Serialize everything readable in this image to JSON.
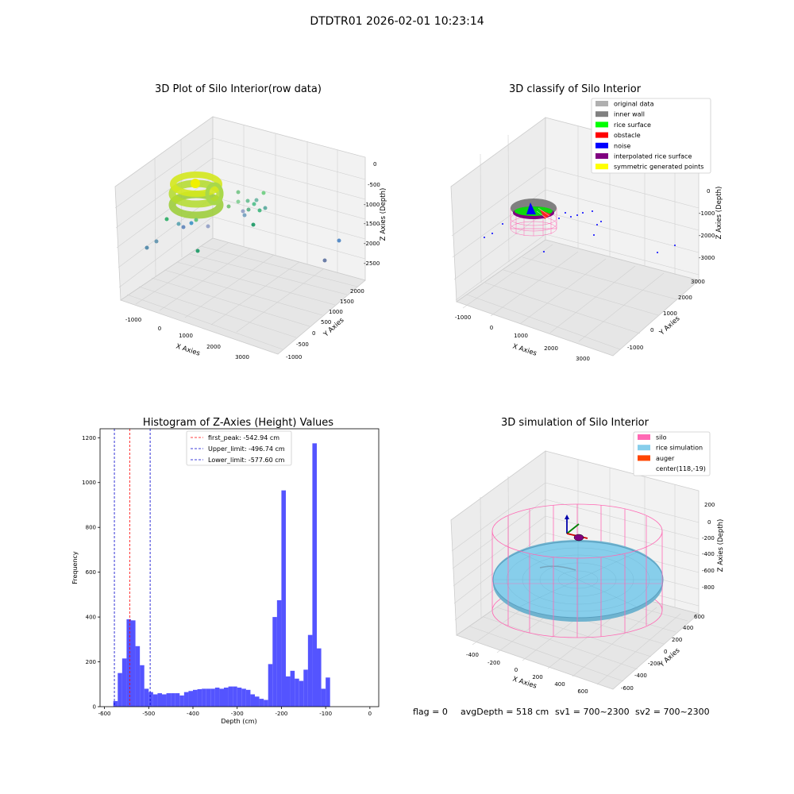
{
  "figure": {
    "suptitle": "DTDTR01 2026-02-01 10:23:14",
    "footer": {
      "flag": "flag = 0",
      "avg_depth": "avgDepth = 518 cm",
      "sv1": "sv1 = 700~2300",
      "sv2": "sv2 = 700~2300"
    }
  },
  "colors": {
    "histogram_bar": "#4b4bff",
    "first_peak_line": "#ff0000",
    "limit_lines": "#0000cc",
    "silo_wire": "#ff69b4",
    "rice_sim": "#87ceeb",
    "pane_bg": "#f2f2f2"
  },
  "chart_data": [
    {
      "type": "scatter",
      "title": "3D Plot of Silo Interior(row data)",
      "xlabel": "X Axies",
      "ylabel": "Y Axies",
      "zlabel": "Z Axies (Depth)",
      "x_ticks": [
        "-1000",
        "0",
        "1000",
        "2000",
        "3000"
      ],
      "y_ticks": [
        "-1000",
        "-500",
        "0",
        "500",
        "1000",
        "1500",
        "2000"
      ],
      "z_ticks": [
        "0",
        "-500",
        "-1000",
        "-1500",
        "-2000",
        "-2500"
      ],
      "grid": true
    },
    {
      "type": "scatter",
      "title": "3D classify of Silo Interior",
      "xlabel": "X Axies",
      "ylabel": "Y Axies",
      "zlabel": "Z Axies (Depth)",
      "x_ticks": [
        "-1000",
        "0",
        "1000",
        "2000",
        "3000"
      ],
      "y_ticks": [
        "-1000",
        "0",
        "1000",
        "2000",
        "3000"
      ],
      "z_ticks": [
        "0",
        "-1000",
        "-2000",
        "-3000"
      ],
      "legend_position": "top-right",
      "legend": [
        {
          "label": "original data",
          "color": "#b0b0b0"
        },
        {
          "label": "inner wall",
          "color": "#808080"
        },
        {
          "label": "rice surface",
          "color": "#00ff00"
        },
        {
          "label": "obstacle",
          "color": "#ff0000"
        },
        {
          "label": "noise",
          "color": "#0000ff"
        },
        {
          "label": "interpolated rice surface",
          "color": "#800080"
        },
        {
          "label": "symmetric generated points",
          "color": "#ffff00"
        }
      ],
      "grid": true
    },
    {
      "type": "bar",
      "title": "Histogram of Z-Axies (Height) Values",
      "xlabel": "Depth (cm)",
      "ylabel": "Frequency",
      "xlim": [
        -610,
        20
      ],
      "ylim": [
        0,
        1240
      ],
      "x_ticks": [
        -600,
        -500,
        -400,
        -300,
        -200,
        -100,
        0
      ],
      "y_ticks": [
        0,
        200,
        400,
        600,
        800,
        1000,
        1200
      ],
      "bin_start": -580,
      "bin_width": 10,
      "values": [
        25,
        150,
        215,
        390,
        385,
        270,
        185,
        80,
        65,
        55,
        60,
        55,
        60,
        60,
        60,
        50,
        65,
        70,
        75,
        78,
        80,
        80,
        80,
        85,
        80,
        85,
        90,
        90,
        85,
        80,
        75,
        55,
        45,
        35,
        30,
        190,
        400,
        475,
        965,
        135,
        160,
        125,
        115,
        165,
        320,
        1175,
        260,
        80,
        130
      ],
      "lines": [
        {
          "label": "first_peak: -542.94 cm",
          "value": -542.94,
          "style": "red-dashed"
        },
        {
          "label": "Upper_limit: -496.74 cm",
          "value": -496.74,
          "style": "blue-dashed"
        },
        {
          "label": "Lower_limit: -577.60 cm",
          "value": -577.6,
          "style": "blue-dashed"
        }
      ],
      "legend_position": "top-center",
      "grid": false
    },
    {
      "type": "scatter",
      "title": "3D simulation of Silo Interior",
      "xlabel": "X Axies",
      "ylabel": "Y Axies",
      "zlabel": "Z Axies (Depth)",
      "x_ticks": [
        "-400",
        "-200",
        "0",
        "200",
        "400",
        "600"
      ],
      "y_ticks": [
        "-600",
        "-400",
        "-200",
        "0",
        "200",
        "400",
        "600"
      ],
      "z_ticks": [
        "200",
        "0",
        "-200",
        "-400",
        "-600",
        "-800"
      ],
      "legend_position": "top-right",
      "legend": [
        {
          "label": "silo",
          "color": "#ff69b4"
        },
        {
          "label": "rice simulation",
          "color": "#87ceeb"
        },
        {
          "label": "auger",
          "color": "#ff4500"
        },
        {
          "label": "center(118,-19)",
          "color": ""
        }
      ],
      "grid": true
    }
  ]
}
